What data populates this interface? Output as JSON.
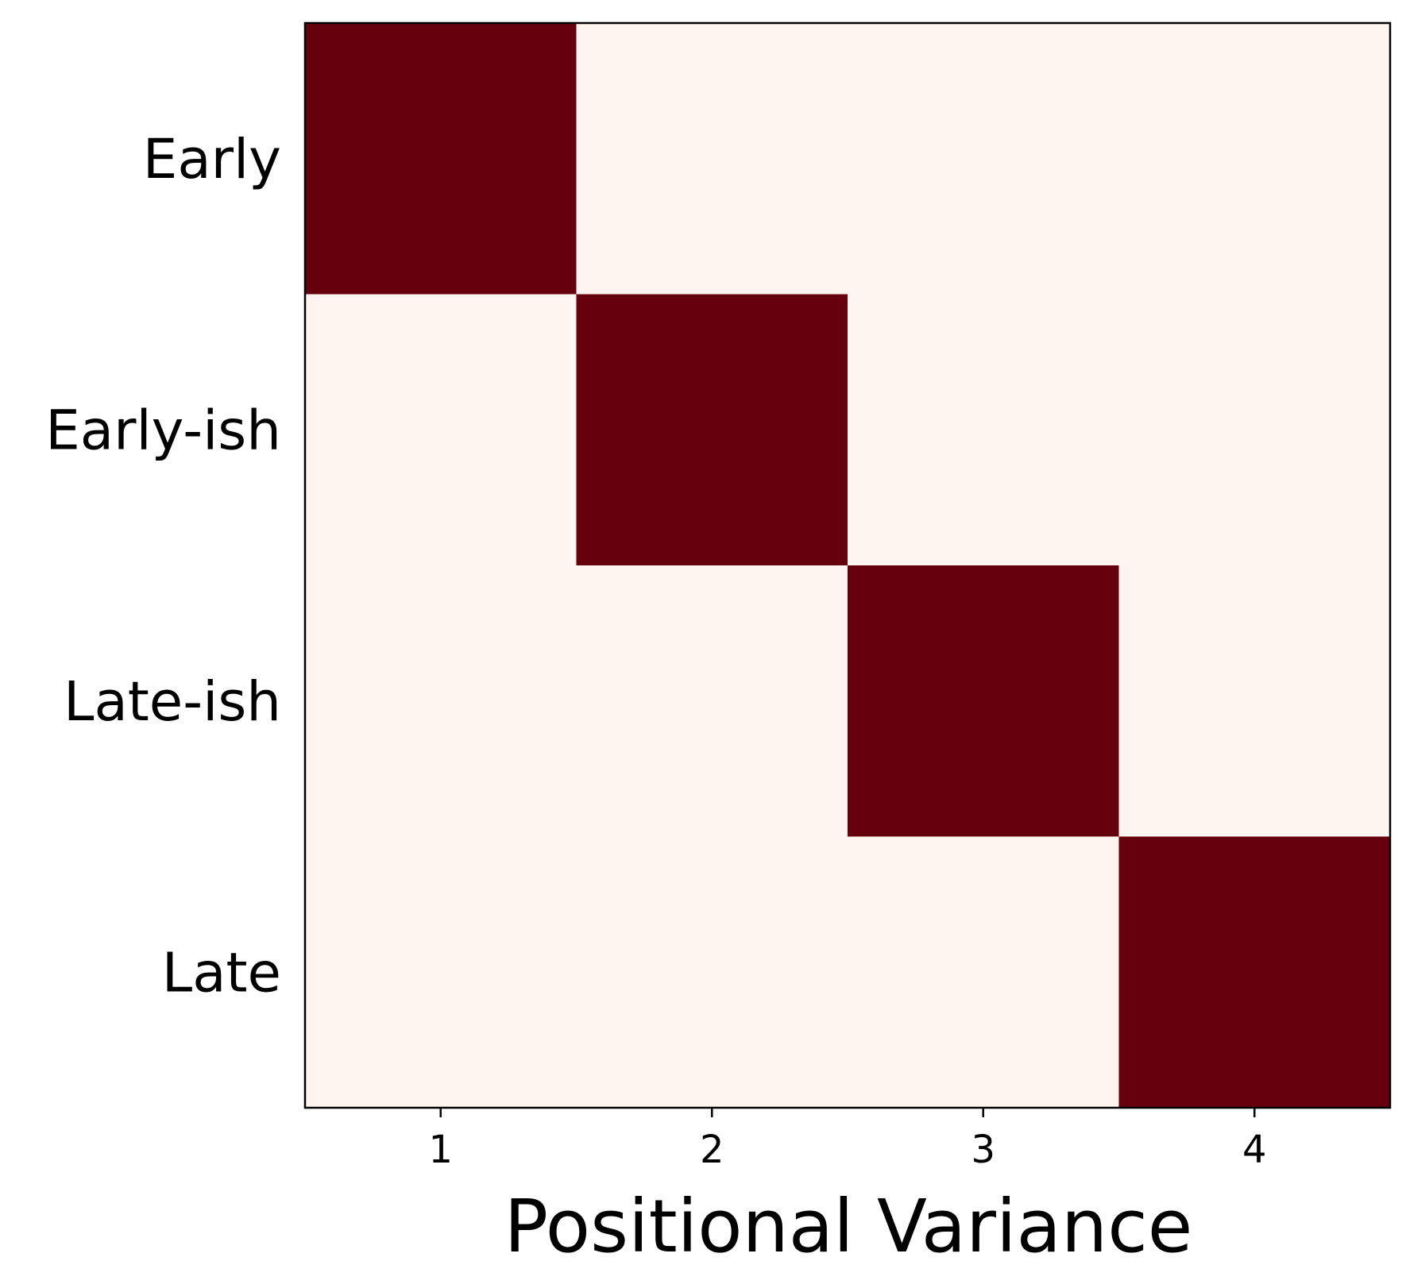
{
  "chart_data": {
    "type": "heatmap",
    "title": "",
    "xlabel": "Positional Variance",
    "ylabel": "",
    "x_categories": [
      "1",
      "2",
      "3",
      "4"
    ],
    "y_categories": [
      "Early",
      "Early-ish",
      "Late-ish",
      "Late"
    ],
    "values": [
      [
        1,
        0,
        0,
        0
      ],
      [
        0,
        1,
        0,
        0
      ],
      [
        0,
        0,
        1,
        0
      ],
      [
        0,
        0,
        0,
        1
      ]
    ],
    "value_range": [
      0,
      1
    ],
    "colormap": "Reds",
    "colors": {
      "low": "#fff5f0",
      "high": "#67000d",
      "frame": "#000000"
    },
    "grid": false,
    "legend": "none"
  }
}
